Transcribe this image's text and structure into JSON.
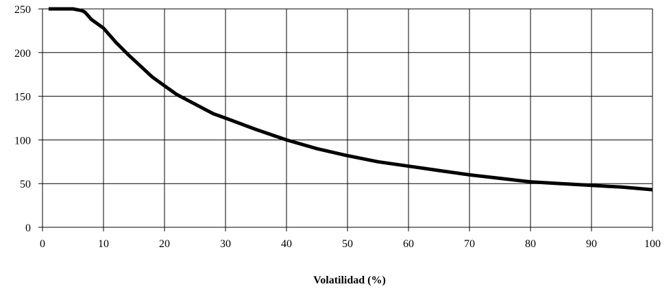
{
  "chart_data": {
    "type": "line",
    "title": "",
    "xlabel": "Volatilidad (%)",
    "ylabel": "",
    "xlim": [
      0,
      100
    ],
    "ylim": [
      0,
      250
    ],
    "xticks": [
      0,
      10,
      20,
      30,
      40,
      50,
      60,
      70,
      80,
      90,
      100
    ],
    "yticks": [
      0,
      50,
      100,
      150,
      200,
      250
    ],
    "grid": true,
    "legend": "none",
    "series": [
      {
        "color": "#000000",
        "x": [
          1,
          5,
          6.5,
          7,
          8,
          10,
          12,
          14,
          16,
          18,
          20,
          22,
          25,
          28,
          30,
          35,
          40,
          45,
          50,
          55,
          60,
          65,
          70,
          75,
          80,
          85,
          90,
          95,
          100
        ],
        "y": [
          250,
          250,
          248,
          246,
          238,
          228,
          212,
          198,
          185,
          172,
          162,
          152,
          141,
          130,
          125,
          112,
          100,
          90,
          82,
          75,
          70,
          65,
          60,
          56,
          52,
          50,
          48,
          46,
          43
        ]
      }
    ]
  }
}
